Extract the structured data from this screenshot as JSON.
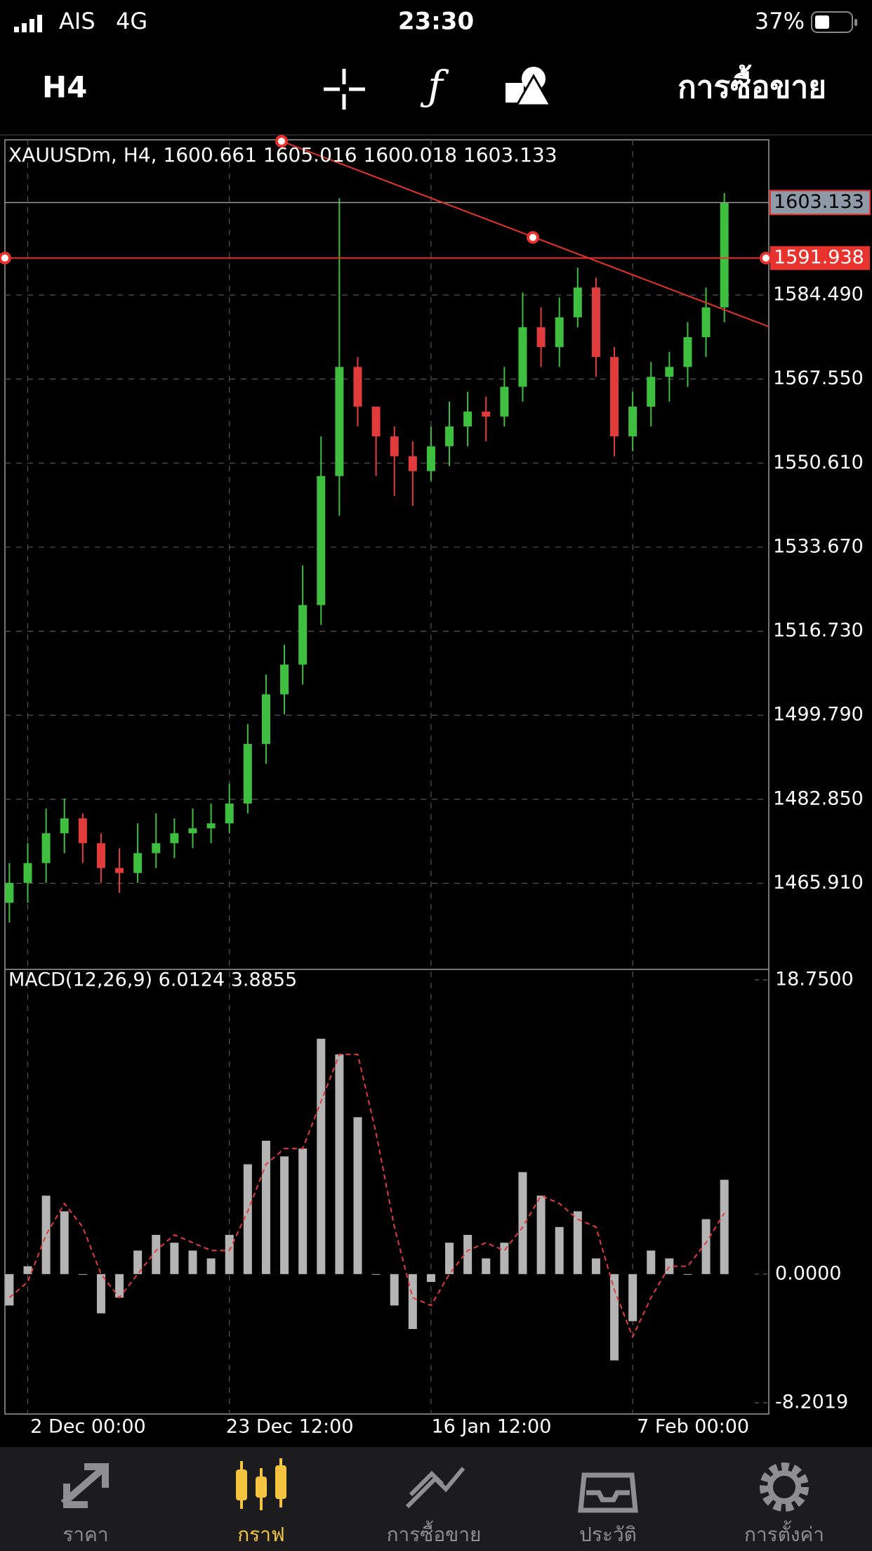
{
  "status_bar": {
    "carrier": "AIS",
    "network": "4G",
    "time": "23:30",
    "battery": "37%"
  },
  "toolbar": {
    "timeframe": "H4",
    "trade": "การซื้อขาย"
  },
  "chart_data": [
    {
      "type": "candlestick",
      "title": "XAUUSDm, H4, 1600.661 1605.016 1600.018 1603.133",
      "categories": [
        null,
        "2 Dec 00:00",
        null,
        null,
        null,
        null,
        null,
        null,
        null,
        null,
        null,
        null,
        "23 Dec 12:00",
        null,
        null,
        null,
        null,
        null,
        null,
        null,
        null,
        null,
        null,
        "16 Jan 12:00",
        null,
        null,
        null,
        null,
        null,
        null,
        null,
        null,
        null,
        null,
        "7 Feb 00:00",
        null,
        null,
        null,
        null,
        null
      ],
      "open": [
        1462,
        1466,
        1470,
        1476,
        1479,
        1474,
        1469,
        1468,
        1472,
        1474,
        1476,
        1477,
        1478,
        1482,
        1494,
        1504,
        1510,
        1522,
        1548,
        1570,
        1562,
        1556,
        1552,
        1549,
        1554,
        1558,
        1561,
        1560,
        1566,
        1578,
        1574,
        1580,
        1586,
        1572,
        1556,
        1562,
        1568,
        1570,
        1576,
        1582
      ],
      "high": [
        1470,
        1474,
        1481,
        1483,
        1480,
        1476,
        1473,
        1478,
        1480,
        1479,
        1481,
        1482,
        1486,
        1498,
        1508,
        1514,
        1530,
        1556,
        1604,
        1572,
        1562,
        1558,
        1555,
        1558,
        1563,
        1565,
        1564,
        1570,
        1585,
        1582,
        1584,
        1590,
        1588,
        1574,
        1565,
        1571,
        1573,
        1579,
        1586,
        1605.016
      ],
      "low": [
        1458,
        1462,
        1466,
        1472,
        1470,
        1466,
        1464,
        1466,
        1469,
        1471,
        1473,
        1474,
        1476,
        1480,
        1490,
        1500,
        1506,
        1518,
        1540,
        1558,
        1548,
        1544,
        1542,
        1547,
        1550,
        1554,
        1555,
        1558,
        1563,
        1570,
        1570,
        1578,
        1568,
        1552,
        1553,
        1558,
        1563,
        1566,
        1572,
        1579
      ],
      "close": [
        1466,
        1470,
        1476,
        1479,
        1474,
        1469,
        1468,
        1472,
        1474,
        1476,
        1477,
        1478,
        1482,
        1494,
        1504,
        1510,
        1522,
        1548,
        1570,
        1562,
        1556,
        1552,
        1549,
        1554,
        1558,
        1561,
        1560,
        1566,
        1578,
        1574,
        1580,
        1586,
        1572,
        1556,
        1562,
        1568,
        1570,
        1576,
        1582,
        1603.133
      ],
      "up_color": "#3fbf3f",
      "down_color": "#e23b3b",
      "ylim": [
        1448.57,
        1615.78
      ],
      "yticks": [
        {
          "value": 1584.49,
          "label": "1584.490"
        },
        {
          "value": 1567.55,
          "label": "1567.550"
        },
        {
          "value": 1550.61,
          "label": "1550.610"
        },
        {
          "value": 1533.67,
          "label": "1533.670"
        },
        {
          "value": 1516.73,
          "label": "1516.730"
        },
        {
          "value": 1499.79,
          "label": "1499.790"
        },
        {
          "value": 1482.85,
          "label": "1482.850"
        },
        {
          "value": 1465.91,
          "label": "1465.910"
        }
      ],
      "last_price": 1603.133,
      "hline": 1591.938,
      "hline_color": "#e8322e",
      "grid": true
    },
    {
      "type": "macd",
      "title": "MACD(12,26,9) 6.0124 3.8855",
      "values": [
        -2,
        0.5,
        5,
        4,
        0,
        -2.5,
        -1.5,
        1.5,
        2.5,
        2,
        1.5,
        1,
        2.5,
        7,
        8.5,
        7.5,
        8,
        15,
        14,
        10,
        0,
        -2,
        -3.5,
        -0.5,
        2,
        2.5,
        1,
        2,
        6.5,
        5,
        3,
        4,
        1,
        -5.5,
        -3,
        1.5,
        1,
        0,
        3.5,
        6.0124
      ],
      "signal": [
        -1.5,
        -0.5,
        2.5,
        4.5,
        3,
        0,
        -1.5,
        0,
        1.5,
        2.5,
        2,
        1.5,
        1.5,
        4,
        7,
        8,
        8,
        11,
        14,
        14,
        9,
        3,
        -1.5,
        -2,
        0,
        1.5,
        2,
        1.5,
        3,
        5,
        4.5,
        3.5,
        3,
        -1,
        -4,
        -1.5,
        0.5,
        0.5,
        2,
        3.8855
      ],
      "color": "#b4b4b4",
      "signal_color": "#e23b3b",
      "ylim": [
        -8.2019,
        18.75
      ],
      "yticks": [
        {
          "value": 18.75,
          "label": "18.7500"
        },
        {
          "value": 0,
          "label": "0.0000"
        },
        {
          "value": -8.2019,
          "label": "-8.2019"
        }
      ]
    }
  ],
  "tab_bar": {
    "tabs": [
      "ราคา",
      "กราฟ",
      "การซื้อขาย",
      "ประวัติ",
      "การตั้งค่า"
    ]
  }
}
